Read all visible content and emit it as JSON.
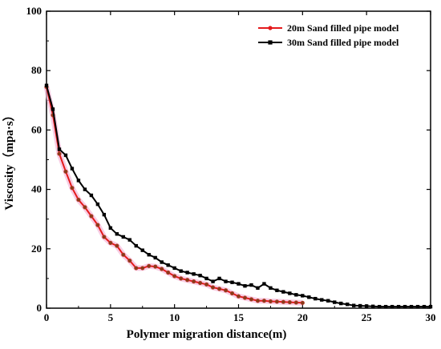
{
  "chart_data": {
    "type": "line",
    "title": "",
    "xlabel": "Polymer migration distance(m)",
    "ylabel": "Viscosity（mpa·s）",
    "xlim": [
      0,
      30
    ],
    "ylim": [
      0,
      100
    ],
    "xticks": [
      "0",
      "5",
      "10",
      "15",
      "20",
      "25",
      "30"
    ],
    "yticks": [
      "0",
      "20",
      "40",
      "60",
      "80",
      "100"
    ],
    "grid": false,
    "legend_position": "top-right",
    "series": [
      {
        "name": "20m Sand filled pipe model",
        "color": "#e41a1c",
        "marker": "circle",
        "x": [
          0,
          0.5,
          1.0,
          1.5,
          2.0,
          2.5,
          3.0,
          3.5,
          4.0,
          4.5,
          5.0,
          5.5,
          6.0,
          6.5,
          7.0,
          7.5,
          8.0,
          8.5,
          9.0,
          9.5,
          10.0,
          10.5,
          11.0,
          11.5,
          12.0,
          12.5,
          13.0,
          13.5,
          14.0,
          14.5,
          15.0,
          15.5,
          16.0,
          16.5,
          17.0,
          17.5,
          18.0,
          18.5,
          19.0,
          19.5,
          20.0
        ],
        "y": [
          74.5,
          65,
          52,
          46,
          40.5,
          36.5,
          34,
          31,
          28,
          24,
          22,
          21,
          18,
          16,
          13.5,
          13.5,
          14.2,
          14,
          13.2,
          12,
          10.8,
          10,
          9.5,
          9,
          8.5,
          8,
          7,
          6.5,
          6,
          5,
          4,
          3.5,
          3,
          2.5,
          2.5,
          2.3,
          2.2,
          2.1,
          2,
          1.9,
          1.8
        ]
      },
      {
        "name": "30m Sand filled pipe model",
        "color": "#000000",
        "marker": "square",
        "x": [
          0,
          0.5,
          1.0,
          1.5,
          2.0,
          2.5,
          3.0,
          3.5,
          4.0,
          4.5,
          5.0,
          5.5,
          6.0,
          6.5,
          7.0,
          7.5,
          8.0,
          8.5,
          9.0,
          9.5,
          10.0,
          10.5,
          11.0,
          11.5,
          12.0,
          12.5,
          13.0,
          13.5,
          14.0,
          14.5,
          15.0,
          15.5,
          16.0,
          16.5,
          17.0,
          17.5,
          18.0,
          18.5,
          19.0,
          19.5,
          20.0,
          20.5,
          21.0,
          21.5,
          22.0,
          22.5,
          23.0,
          23.5,
          24.0,
          24.5,
          25.0,
          25.5,
          26.0,
          26.5,
          27.0,
          27.5,
          28.0,
          28.5,
          29.0,
          29.5,
          30.0
        ],
        "y": [
          75,
          67,
          53.5,
          51.5,
          47,
          43,
          40,
          38,
          35,
          31.5,
          27,
          25,
          24,
          23,
          21,
          19.5,
          18,
          17,
          15.5,
          14.5,
          13.5,
          12.5,
          12,
          11.5,
          11,
          10,
          9,
          10,
          9,
          8.7,
          8.2,
          7.5,
          7.8,
          6.8,
          8.2,
          6.8,
          6,
          5.5,
          5,
          4.5,
          4.2,
          3.7,
          3.2,
          2.8,
          2.5,
          2,
          1.6,
          1.3,
          0.9,
          0.8,
          0.7,
          0.6,
          0.5,
          0.5,
          0.5,
          0.5,
          0.5,
          0.5,
          0.5,
          0.5,
          0.5
        ]
      }
    ]
  }
}
